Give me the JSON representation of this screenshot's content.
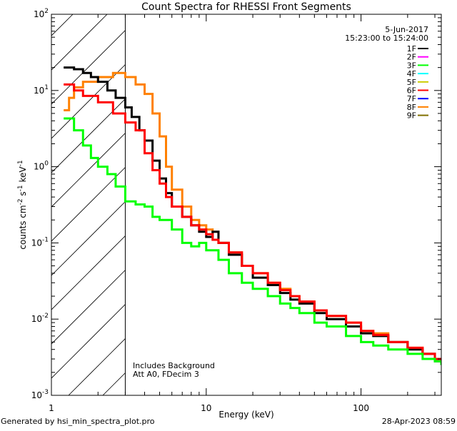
{
  "chart_data": {
    "type": "line",
    "title": "Count Spectra for RHESSI Front Segments",
    "xlabel": "Energy (keV)",
    "ylabel": "counts cm-2 s-1 keV-1",
    "xscale": "log",
    "yscale": "log",
    "xlim": [
      1,
      330
    ],
    "ylim": [
      0.001,
      100
    ],
    "xticks": [
      {
        "v": 1,
        "label": "1"
      },
      {
        "v": 10,
        "label": "10"
      },
      {
        "v": 100,
        "label": "100"
      }
    ],
    "yticks": [
      {
        "v": 0.001,
        "exp": "-3"
      },
      {
        "v": 0.01,
        "exp": "-2"
      },
      {
        "v": 0.1,
        "exp": "-1"
      },
      {
        "v": 1,
        "exp": "0"
      },
      {
        "v": 10,
        "exp": "1"
      },
      {
        "v": 100,
        "exp": "2"
      }
    ],
    "date": "5-Jun-2017",
    "time_range": "15:23:00 to 15:24:00",
    "hatched_region_kev": [
      1,
      3
    ],
    "annotations": [
      "Includes Background",
      "Att A0, FDecim 3"
    ],
    "footer_left": "Generated by hsi_min_spectra_plot.pro",
    "footer_right": "28-Apr-2023 08:59",
    "legend": [
      {
        "name": "1F",
        "color": "#000000"
      },
      {
        "name": "2F",
        "color": "#ff00ff"
      },
      {
        "name": "3F",
        "color": "#00ff00"
      },
      {
        "name": "4F",
        "color": "#00ffff"
      },
      {
        "name": "5F",
        "color": "#cccc00"
      },
      {
        "name": "6F",
        "color": "#ff0000"
      },
      {
        "name": "7F",
        "color": "#0000ff"
      },
      {
        "name": "8F",
        "color": "#ff8000"
      },
      {
        "name": "9F",
        "color": "#807000"
      }
    ],
    "series": [
      {
        "name": "8F",
        "color": "#ff8000",
        "x": [
          1.2,
          1.3,
          1.4,
          1.6,
          2,
          2.5,
          3,
          3.5,
          4,
          4.5,
          5,
          5.5,
          6,
          7,
          8,
          9,
          10,
          11,
          12,
          14,
          17,
          20,
          25,
          30,
          35,
          40,
          50,
          60,
          80,
          100,
          120,
          150,
          200,
          250,
          300,
          330
        ],
        "y": [
          5.5,
          8,
          11,
          13,
          15,
          17,
          15,
          12,
          9,
          5,
          2.5,
          1,
          0.5,
          0.3,
          0.2,
          0.17,
          0.15,
          0.14,
          0.1,
          0.075,
          0.05,
          0.04,
          0.03,
          0.025,
          0.02,
          0.017,
          0.013,
          0.011,
          0.009,
          0.007,
          0.0065,
          0.005,
          0.0042,
          0.0035,
          0.003,
          0.0025
        ]
      },
      {
        "name": "1F",
        "color": "#000000",
        "x": [
          1.2,
          1.4,
          1.6,
          1.8,
          2,
          2.3,
          2.6,
          3,
          3.3,
          3.7,
          4,
          4.5,
          5,
          5.5,
          6,
          7,
          8,
          9,
          10,
          11,
          12,
          14,
          17,
          20,
          25,
          30,
          35,
          40,
          50,
          60,
          80,
          100,
          120,
          150,
          200,
          250,
          300,
          330
        ],
        "y": [
          20,
          19,
          17,
          15,
          13,
          10,
          8,
          6,
          4.5,
          3,
          2.2,
          1.2,
          0.7,
          0.45,
          0.3,
          0.22,
          0.17,
          0.14,
          0.12,
          0.14,
          0.1,
          0.07,
          0.05,
          0.035,
          0.028,
          0.022,
          0.018,
          0.016,
          0.012,
          0.01,
          0.008,
          0.0065,
          0.006,
          0.005,
          0.004,
          0.0035,
          0.0028,
          0.0025
        ]
      },
      {
        "name": "6F",
        "color": "#ff0000",
        "x": [
          1.2,
          1.4,
          1.6,
          2,
          2.5,
          3,
          3.5,
          4,
          4.5,
          5,
          5.5,
          6,
          7,
          8,
          9,
          10,
          11,
          12,
          14,
          17,
          20,
          25,
          30,
          35,
          40,
          50,
          60,
          80,
          100,
          120,
          150,
          200,
          250,
          300,
          330
        ],
        "y": [
          12,
          10,
          8.5,
          7,
          5,
          3.8,
          3,
          1.5,
          0.9,
          0.6,
          0.4,
          0.3,
          0.22,
          0.17,
          0.15,
          0.13,
          0.11,
          0.1,
          0.075,
          0.05,
          0.04,
          0.03,
          0.024,
          0.02,
          0.017,
          0.013,
          0.011,
          0.009,
          0.007,
          0.0062,
          0.005,
          0.0042,
          0.0035,
          0.003,
          0.0025
        ]
      },
      {
        "name": "3F",
        "color": "#00ff00",
        "x": [
          1.2,
          1.4,
          1.6,
          1.8,
          2,
          2.3,
          2.6,
          3,
          3.5,
          4,
          4.5,
          5,
          6,
          7,
          8,
          9,
          10,
          12,
          14,
          17,
          20,
          25,
          30,
          35,
          40,
          50,
          60,
          80,
          100,
          120,
          150,
          200,
          250,
          300,
          330
        ],
        "y": [
          4.3,
          3,
          1.9,
          1.3,
          1.0,
          0.8,
          0.55,
          0.35,
          0.32,
          0.3,
          0.22,
          0.2,
          0.15,
          0.1,
          0.09,
          0.1,
          0.08,
          0.06,
          0.04,
          0.03,
          0.025,
          0.02,
          0.016,
          0.014,
          0.012,
          0.009,
          0.008,
          0.006,
          0.005,
          0.0045,
          0.004,
          0.0035,
          0.003,
          0.0028,
          0.0025
        ]
      }
    ]
  }
}
